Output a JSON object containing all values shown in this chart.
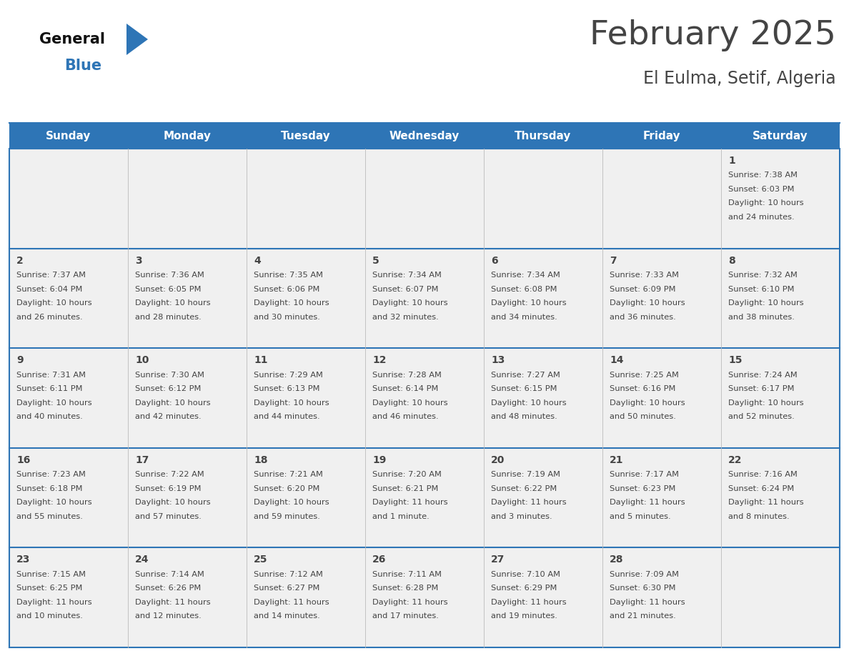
{
  "title": "February 2025",
  "subtitle": "El Eulma, Setif, Algeria",
  "header_bg": "#2E75B6",
  "header_text": "#FFFFFF",
  "cell_bg": "#F0F0F0",
  "day_names": [
    "Sunday",
    "Monday",
    "Tuesday",
    "Wednesday",
    "Thursday",
    "Friday",
    "Saturday"
  ],
  "days": [
    {
      "day": 1,
      "col": 6,
      "row": 0,
      "sunrise": "7:38 AM",
      "sunset": "6:03 PM",
      "daylight_h": "10 hours",
      "daylight_m": "24 minutes."
    },
    {
      "day": 2,
      "col": 0,
      "row": 1,
      "sunrise": "7:37 AM",
      "sunset": "6:04 PM",
      "daylight_h": "10 hours",
      "daylight_m": "26 minutes."
    },
    {
      "day": 3,
      "col": 1,
      "row": 1,
      "sunrise": "7:36 AM",
      "sunset": "6:05 PM",
      "daylight_h": "10 hours",
      "daylight_m": "28 minutes."
    },
    {
      "day": 4,
      "col": 2,
      "row": 1,
      "sunrise": "7:35 AM",
      "sunset": "6:06 PM",
      "daylight_h": "10 hours",
      "daylight_m": "30 minutes."
    },
    {
      "day": 5,
      "col": 3,
      "row": 1,
      "sunrise": "7:34 AM",
      "sunset": "6:07 PM",
      "daylight_h": "10 hours",
      "daylight_m": "32 minutes."
    },
    {
      "day": 6,
      "col": 4,
      "row": 1,
      "sunrise": "7:34 AM",
      "sunset": "6:08 PM",
      "daylight_h": "10 hours",
      "daylight_m": "34 minutes."
    },
    {
      "day": 7,
      "col": 5,
      "row": 1,
      "sunrise": "7:33 AM",
      "sunset": "6:09 PM",
      "daylight_h": "10 hours",
      "daylight_m": "36 minutes."
    },
    {
      "day": 8,
      "col": 6,
      "row": 1,
      "sunrise": "7:32 AM",
      "sunset": "6:10 PM",
      "daylight_h": "10 hours",
      "daylight_m": "38 minutes."
    },
    {
      "day": 9,
      "col": 0,
      "row": 2,
      "sunrise": "7:31 AM",
      "sunset": "6:11 PM",
      "daylight_h": "10 hours",
      "daylight_m": "40 minutes."
    },
    {
      "day": 10,
      "col": 1,
      "row": 2,
      "sunrise": "7:30 AM",
      "sunset": "6:12 PM",
      "daylight_h": "10 hours",
      "daylight_m": "42 minutes."
    },
    {
      "day": 11,
      "col": 2,
      "row": 2,
      "sunrise": "7:29 AM",
      "sunset": "6:13 PM",
      "daylight_h": "10 hours",
      "daylight_m": "44 minutes."
    },
    {
      "day": 12,
      "col": 3,
      "row": 2,
      "sunrise": "7:28 AM",
      "sunset": "6:14 PM",
      "daylight_h": "10 hours",
      "daylight_m": "46 minutes."
    },
    {
      "day": 13,
      "col": 4,
      "row": 2,
      "sunrise": "7:27 AM",
      "sunset": "6:15 PM",
      "daylight_h": "10 hours",
      "daylight_m": "48 minutes."
    },
    {
      "day": 14,
      "col": 5,
      "row": 2,
      "sunrise": "7:25 AM",
      "sunset": "6:16 PM",
      "daylight_h": "10 hours",
      "daylight_m": "50 minutes."
    },
    {
      "day": 15,
      "col": 6,
      "row": 2,
      "sunrise": "7:24 AM",
      "sunset": "6:17 PM",
      "daylight_h": "10 hours",
      "daylight_m": "52 minutes."
    },
    {
      "day": 16,
      "col": 0,
      "row": 3,
      "sunrise": "7:23 AM",
      "sunset": "6:18 PM",
      "daylight_h": "10 hours",
      "daylight_m": "55 minutes."
    },
    {
      "day": 17,
      "col": 1,
      "row": 3,
      "sunrise": "7:22 AM",
      "sunset": "6:19 PM",
      "daylight_h": "10 hours",
      "daylight_m": "57 minutes."
    },
    {
      "day": 18,
      "col": 2,
      "row": 3,
      "sunrise": "7:21 AM",
      "sunset": "6:20 PM",
      "daylight_h": "10 hours",
      "daylight_m": "59 minutes."
    },
    {
      "day": 19,
      "col": 3,
      "row": 3,
      "sunrise": "7:20 AM",
      "sunset": "6:21 PM",
      "daylight_h": "11 hours",
      "daylight_m": "1 minute."
    },
    {
      "day": 20,
      "col": 4,
      "row": 3,
      "sunrise": "7:19 AM",
      "sunset": "6:22 PM",
      "daylight_h": "11 hours",
      "daylight_m": "3 minutes."
    },
    {
      "day": 21,
      "col": 5,
      "row": 3,
      "sunrise": "7:17 AM",
      "sunset": "6:23 PM",
      "daylight_h": "11 hours",
      "daylight_m": "5 minutes."
    },
    {
      "day": 22,
      "col": 6,
      "row": 3,
      "sunrise": "7:16 AM",
      "sunset": "6:24 PM",
      "daylight_h": "11 hours",
      "daylight_m": "8 minutes."
    },
    {
      "day": 23,
      "col": 0,
      "row": 4,
      "sunrise": "7:15 AM",
      "sunset": "6:25 PM",
      "daylight_h": "11 hours",
      "daylight_m": "10 minutes."
    },
    {
      "day": 24,
      "col": 1,
      "row": 4,
      "sunrise": "7:14 AM",
      "sunset": "6:26 PM",
      "daylight_h": "11 hours",
      "daylight_m": "12 minutes."
    },
    {
      "day": 25,
      "col": 2,
      "row": 4,
      "sunrise": "7:12 AM",
      "sunset": "6:27 PM",
      "daylight_h": "11 hours",
      "daylight_m": "14 minutes."
    },
    {
      "day": 26,
      "col": 3,
      "row": 4,
      "sunrise": "7:11 AM",
      "sunset": "6:28 PM",
      "daylight_h": "11 hours",
      "daylight_m": "17 minutes."
    },
    {
      "day": 27,
      "col": 4,
      "row": 4,
      "sunrise": "7:10 AM",
      "sunset": "6:29 PM",
      "daylight_h": "11 hours",
      "daylight_m": "19 minutes."
    },
    {
      "day": 28,
      "col": 5,
      "row": 4,
      "sunrise": "7:09 AM",
      "sunset": "6:30 PM",
      "daylight_h": "11 hours",
      "daylight_m": "21 minutes."
    }
  ],
  "num_rows": 5,
  "num_cols": 7,
  "border_color": "#2E75B6",
  "text_color": "#444444",
  "logo_general_color": "#111111",
  "logo_blue_color": "#2E75B6"
}
